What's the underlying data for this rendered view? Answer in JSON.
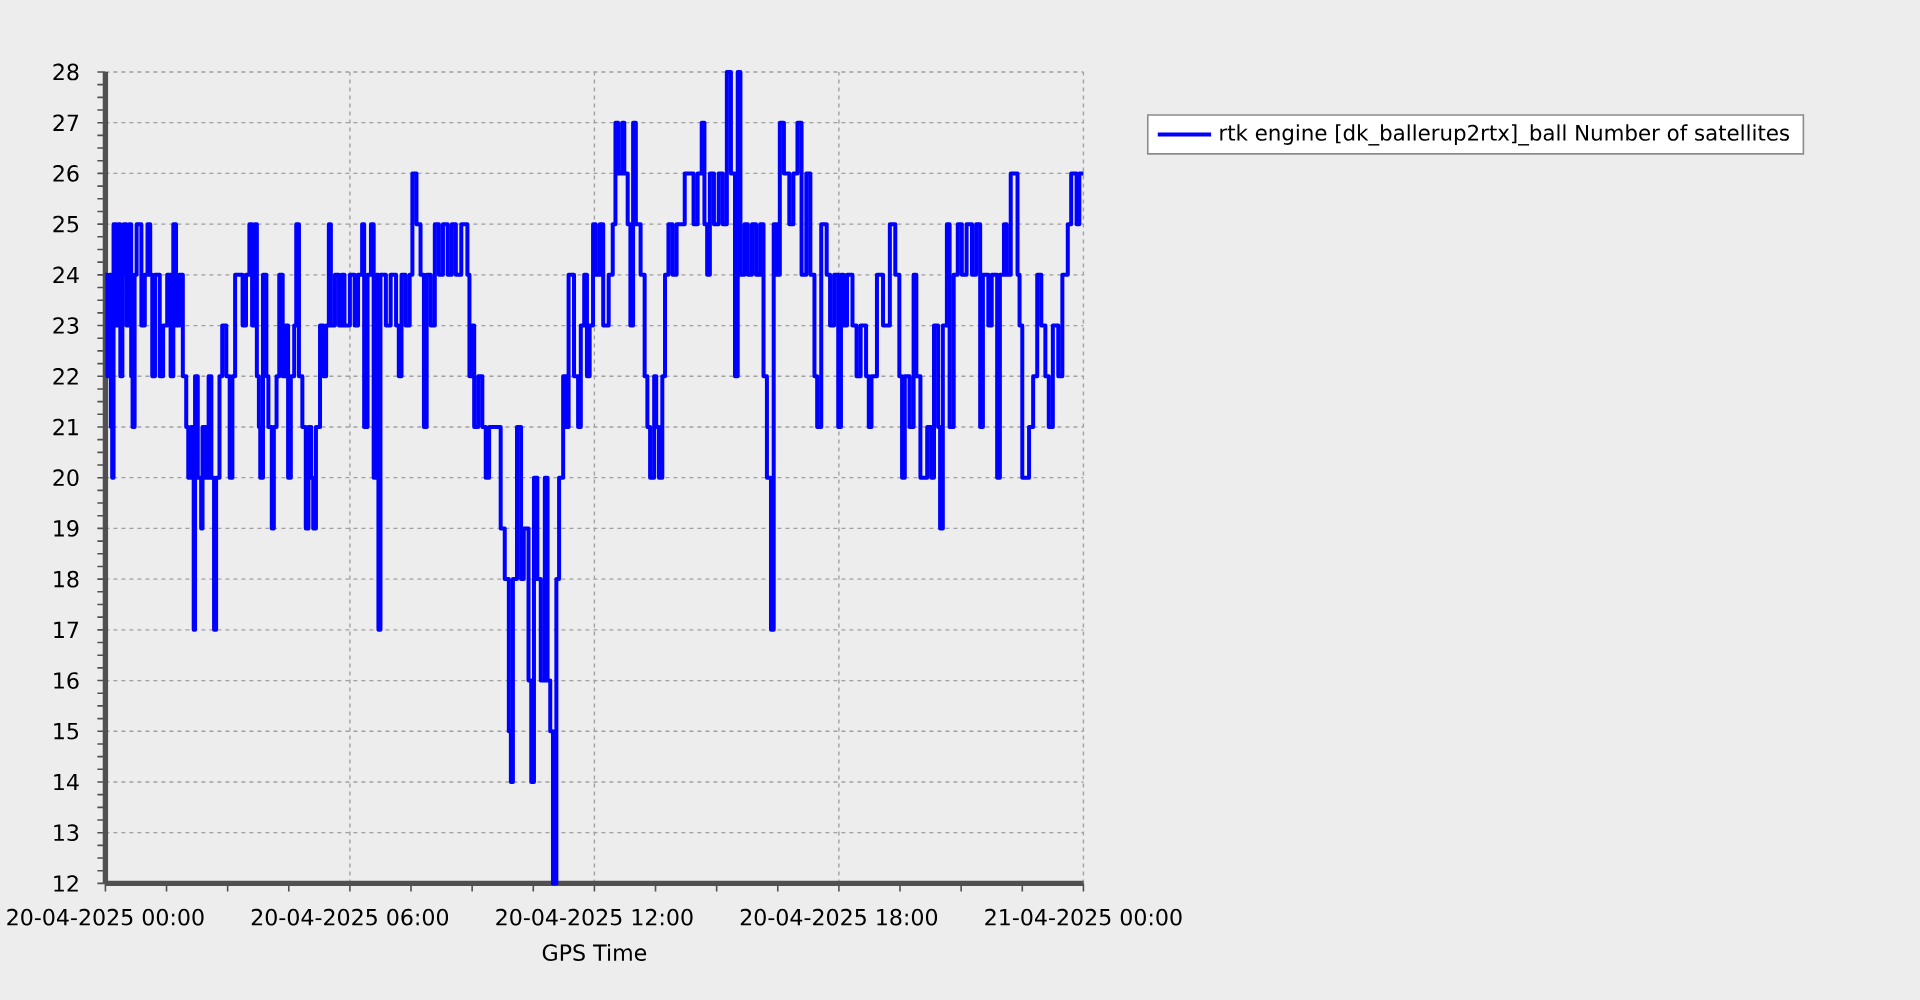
{
  "chart_data": {
    "type": "step",
    "xlabel": "GPS Time",
    "x": [
      "2025-04-20T00:00",
      "2025-04-20T00:03",
      "2025-04-20T00:06",
      "2025-04-20T00:08",
      "2025-04-20T00:10",
      "2025-04-20T00:12",
      "2025-04-20T00:16",
      "2025-04-20T00:19",
      "2025-04-20T00:22",
      "2025-04-20T00:25",
      "2025-04-20T00:27",
      "2025-04-20T00:31",
      "2025-04-20T00:35",
      "2025-04-20T00:38",
      "2025-04-20T00:40",
      "2025-04-20T00:43",
      "2025-04-20T00:46",
      "2025-04-20T00:53",
      "2025-04-20T00:58",
      "2025-04-20T01:02",
      "2025-04-20T01:06",
      "2025-04-20T01:09",
      "2025-04-20T01:13",
      "2025-04-20T01:20",
      "2025-04-20T01:25",
      "2025-04-20T01:31",
      "2025-04-20T01:36",
      "2025-04-20T01:40",
      "2025-04-20T01:44",
      "2025-04-20T01:49",
      "2025-04-20T01:54",
      "2025-04-20T01:59",
      "2025-04-20T02:02",
      "2025-04-20T02:06",
      "2025-04-20T02:10",
      "2025-04-20T02:12",
      "2025-04-20T02:16",
      "2025-04-20T02:21",
      "2025-04-20T02:23",
      "2025-04-20T02:28",
      "2025-04-20T02:32",
      "2025-04-20T02:36",
      "2025-04-20T02:40",
      "2025-04-20T02:43",
      "2025-04-20T02:48",
      "2025-04-20T02:52",
      "2025-04-20T02:58",
      "2025-04-20T03:03",
      "2025-04-20T03:07",
      "2025-04-20T03:11",
      "2025-04-20T03:22",
      "2025-04-20T03:27",
      "2025-04-20T03:32",
      "2025-04-20T03:36",
      "2025-04-20T03:40",
      "2025-04-20T03:43",
      "2025-04-20T03:46",
      "2025-04-20T03:48",
      "2025-04-20T03:52",
      "2025-04-20T03:57",
      "2025-04-20T04:00",
      "2025-04-20T04:05",
      "2025-04-20T04:08",
      "2025-04-20T04:12",
      "2025-04-20T04:16",
      "2025-04-20T04:21",
      "2025-04-20T04:25",
      "2025-04-20T04:29",
      "2025-04-20T04:33",
      "2025-04-20T04:38",
      "2025-04-20T04:41",
      "2025-04-20T04:45",
      "2025-04-20T04:50",
      "2025-04-20T04:55",
      "2025-04-20T04:59",
      "2025-04-20T05:03",
      "2025-04-20T05:06",
      "2025-04-20T05:10",
      "2025-04-20T05:16",
      "2025-04-20T05:21",
      "2025-04-20T05:25",
      "2025-04-20T05:29",
      "2025-04-20T05:32",
      "2025-04-20T05:38",
      "2025-04-20T05:44",
      "2025-04-20T05:48",
      "2025-04-20T05:52",
      "2025-04-20T06:00",
      "2025-04-20T06:07",
      "2025-04-20T06:12",
      "2025-04-20T06:18",
      "2025-04-20T06:21",
      "2025-04-20T06:26",
      "2025-04-20T06:31",
      "2025-04-20T06:35",
      "2025-04-20T06:39",
      "2025-04-20T06:42",
      "2025-04-20T06:45",
      "2025-04-20T06:53",
      "2025-04-20T07:00",
      "2025-04-20T07:08",
      "2025-04-20T07:12",
      "2025-04-20T07:16",
      "2025-04-20T07:22",
      "2025-04-20T07:28",
      "2025-04-20T07:32",
      "2025-04-20T07:38",
      "2025-04-20T07:44",
      "2025-04-20T07:49",
      "2025-04-20T07:53",
      "2025-04-20T07:59",
      "2025-04-20T08:05",
      "2025-04-20T08:11",
      "2025-04-20T08:17",
      "2025-04-20T08:24",
      "2025-04-20T08:30",
      "2025-04-20T08:36",
      "2025-04-20T08:44",
      "2025-04-20T08:53",
      "2025-04-20T08:56",
      "2025-04-20T09:00",
      "2025-04-20T09:03",
      "2025-04-20T09:09",
      "2025-04-20T09:15",
      "2025-04-20T09:20",
      "2025-04-20T09:25",
      "2025-04-20T09:42",
      "2025-04-20T09:48",
      "2025-04-20T09:54",
      "2025-04-20T09:57",
      "2025-04-20T10:00",
      "2025-04-20T10:06",
      "2025-04-20T10:12",
      "2025-04-20T10:16",
      "2025-04-20T10:23",
      "2025-04-20T10:27",
      "2025-04-20T10:31",
      "2025-04-20T10:36",
      "2025-04-20T10:41",
      "2025-04-20T10:47",
      "2025-04-20T10:51",
      "2025-04-20T10:55",
      "2025-04-20T10:59",
      "2025-04-20T11:04",
      "2025-04-20T11:08",
      "2025-04-20T11:14",
      "2025-04-20T11:19",
      "2025-04-20T11:22",
      "2025-04-20T11:30",
      "2025-04-20T11:36",
      "2025-04-20T11:40",
      "2025-04-20T11:45",
      "2025-04-20T11:49",
      "2025-04-20T11:53",
      "2025-04-20T11:58",
      "2025-04-20T12:02",
      "2025-04-20T12:08",
      "2025-04-20T12:13",
      "2025-04-20T12:21",
      "2025-04-20T12:27",
      "2025-04-20T12:31",
      "2025-04-20T12:35",
      "2025-04-20T12:41",
      "2025-04-20T12:44",
      "2025-04-20T12:49",
      "2025-04-20T12:53",
      "2025-04-20T12:57",
      "2025-04-20T13:01",
      "2025-04-20T13:08",
      "2025-04-20T13:14",
      "2025-04-20T13:18",
      "2025-04-20T13:22",
      "2025-04-20T13:28",
      "2025-04-20T13:31",
      "2025-04-20T13:35",
      "2025-04-20T13:40",
      "2025-04-20T13:44",
      "2025-04-20T13:49",
      "2025-04-20T13:55",
      "2025-04-20T14:01",
      "2025-04-20T14:13",
      "2025-04-20T14:26",
      "2025-04-20T14:32",
      "2025-04-20T14:38",
      "2025-04-20T14:42",
      "2025-04-20T14:46",
      "2025-04-20T14:50",
      "2025-04-20T14:56",
      "2025-04-20T15:03",
      "2025-04-20T15:09",
      "2025-04-20T15:15",
      "2025-04-20T15:21",
      "2025-04-20T15:27",
      "2025-04-20T15:31",
      "2025-04-20T15:35",
      "2025-04-20T15:41",
      "2025-04-20T15:46",
      "2025-04-20T15:52",
      "2025-04-20T15:58",
      "2025-04-20T16:04",
      "2025-04-20T16:09",
      "2025-04-20T16:14",
      "2025-04-20T16:20",
      "2025-04-20T16:24",
      "2025-04-20T16:29",
      "2025-04-20T16:33",
      "2025-04-20T16:39",
      "2025-04-20T16:47",
      "2025-04-20T16:53",
      "2025-04-20T16:59",
      "2025-04-20T17:05",
      "2025-04-20T17:12",
      "2025-04-20T17:18",
      "2025-04-20T17:24",
      "2025-04-20T17:28",
      "2025-04-20T17:34",
      "2025-04-20T17:42",
      "2025-04-20T17:47",
      "2025-04-20T17:53",
      "2025-04-20T17:59",
      "2025-04-20T18:03",
      "2025-04-20T18:07",
      "2025-04-20T18:12",
      "2025-04-20T18:20",
      "2025-04-20T18:26",
      "2025-04-20T18:32",
      "2025-04-20T18:40",
      "2025-04-20T18:44",
      "2025-04-20T18:48",
      "2025-04-20T18:56",
      "2025-04-20T19:05",
      "2025-04-20T19:15",
      "2025-04-20T19:23",
      "2025-04-20T19:29",
      "2025-04-20T19:33",
      "2025-04-20T19:37",
      "2025-04-20T19:44",
      "2025-04-20T19:50",
      "2025-04-20T19:54",
      "2025-04-20T20:00",
      "2025-04-20T20:10",
      "2025-04-20T20:16",
      "2025-04-20T20:20",
      "2025-04-20T20:26",
      "2025-04-20T20:29",
      "2025-04-20T20:33",
      "2025-04-20T20:39",
      "2025-04-20T20:43",
      "2025-04-20T20:49",
      "2025-04-20T20:55",
      "2025-04-20T21:01",
      "2025-04-20T21:08",
      "2025-04-20T21:16",
      "2025-04-20T21:22",
      "2025-04-20T21:28",
      "2025-04-20T21:32",
      "2025-04-20T21:40",
      "2025-04-20T21:45",
      "2025-04-20T21:53",
      "2025-04-20T21:57",
      "2025-04-20T22:03",
      "2025-04-20T22:07",
      "2025-04-20T22:13",
      "2025-04-20T22:23",
      "2025-04-20T22:26",
      "2025-04-20T22:30",
      "2025-04-20T22:40",
      "2025-04-20T22:46",
      "2025-04-20T22:52",
      "2025-04-20T22:58",
      "2025-04-20T23:04",
      "2025-04-20T23:09",
      "2025-04-20T23:15",
      "2025-04-20T23:23",
      "2025-04-20T23:29",
      "2025-04-20T23:37",
      "2025-04-20T23:42",
      "2025-04-20T23:50",
      "2025-04-20T23:54",
      "2025-04-21T00:00"
    ],
    "series": [
      {
        "name": "rtk engine [dk_ballerup2rtx]_ball Number of satellites",
        "color": "#0000ff",
        "values": [
          24,
          22,
          24,
          21,
          20,
          25,
          23,
          25,
          22,
          24,
          25,
          23,
          25,
          22,
          21,
          24,
          25,
          23,
          24,
          25,
          24,
          22,
          24,
          22,
          23,
          24,
          22,
          25,
          23,
          24,
          22,
          21,
          20,
          21,
          17,
          22,
          20,
          19,
          21,
          20,
          22,
          20,
          17,
          20,
          22,
          23,
          22,
          20,
          22,
          24,
          23,
          24,
          25,
          23,
          25,
          22,
          21,
          20,
          24,
          22,
          21,
          19,
          21,
          22,
          24,
          22,
          23,
          20,
          22,
          23,
          25,
          22,
          21,
          19,
          21,
          20,
          19,
          21,
          23,
          22,
          23,
          25,
          23,
          24,
          23,
          24,
          23,
          24,
          23,
          24,
          25,
          21,
          24,
          25,
          20,
          24,
          17,
          24,
          23,
          24,
          23,
          22,
          24,
          23,
          24,
          26,
          25,
          24,
          21,
          24,
          23,
          25,
          24,
          25,
          24,
          25,
          24,
          25,
          24,
          22,
          23,
          21,
          22,
          21,
          20,
          21,
          19,
          18,
          15,
          14,
          18,
          21,
          18,
          19,
          16,
          14,
          20,
          18,
          16,
          20,
          16,
          15,
          12,
          18,
          20,
          22,
          21,
          24,
          22,
          21,
          23,
          24,
          22,
          23,
          25,
          24,
          25,
          23,
          24,
          25,
          27,
          26,
          27,
          26,
          25,
          23,
          27,
          25,
          24,
          22,
          21,
          20,
          22,
          21,
          20,
          22,
          24,
          25,
          24,
          25,
          26,
          25,
          26,
          27,
          25,
          24,
          26,
          25,
          26,
          25,
          28,
          26,
          22,
          28,
          24,
          25,
          24,
          25,
          24,
          25,
          22,
          20,
          17,
          25,
          24,
          27,
          26,
          25,
          26,
          27,
          24,
          26,
          24,
          22,
          21,
          25,
          24,
          23,
          24,
          21,
          24,
          23,
          24,
          23,
          22,
          23,
          22,
          21,
          22,
          24,
          23,
          25,
          24,
          22,
          20,
          22,
          21,
          24,
          22,
          20,
          21,
          20,
          23,
          21,
          19,
          23,
          25,
          21,
          24,
          25,
          24,
          25,
          24,
          25,
          21,
          24,
          23,
          24,
          20,
          24,
          25,
          24,
          26,
          24,
          23,
          20,
          21,
          22,
          24,
          23,
          22,
          21,
          23,
          22,
          24,
          25,
          26,
          25,
          26,
          26
        ]
      }
    ],
    "xlim": [
      "2025-04-20T00:00",
      "2025-04-21T00:00"
    ],
    "xticks": [
      {
        "value": "2025-04-20T00:00",
        "label": "20-04-2025 00:00"
      },
      {
        "value": "2025-04-20T06:00",
        "label": "20-04-2025 06:00"
      },
      {
        "value": "2025-04-20T12:00",
        "label": "20-04-2025 12:00"
      },
      {
        "value": "2025-04-20T18:00",
        "label": "20-04-2025 18:00"
      },
      {
        "value": "2025-04-21T00:00",
        "label": "21-04-2025 00:00"
      }
    ],
    "ylim": [
      12,
      28
    ],
    "yticks": [
      12,
      13,
      14,
      15,
      16,
      17,
      18,
      19,
      20,
      21,
      22,
      23,
      24,
      25,
      26,
      27,
      28
    ],
    "grid": true,
    "legend": "top right",
    "line_style": "solid"
  }
}
